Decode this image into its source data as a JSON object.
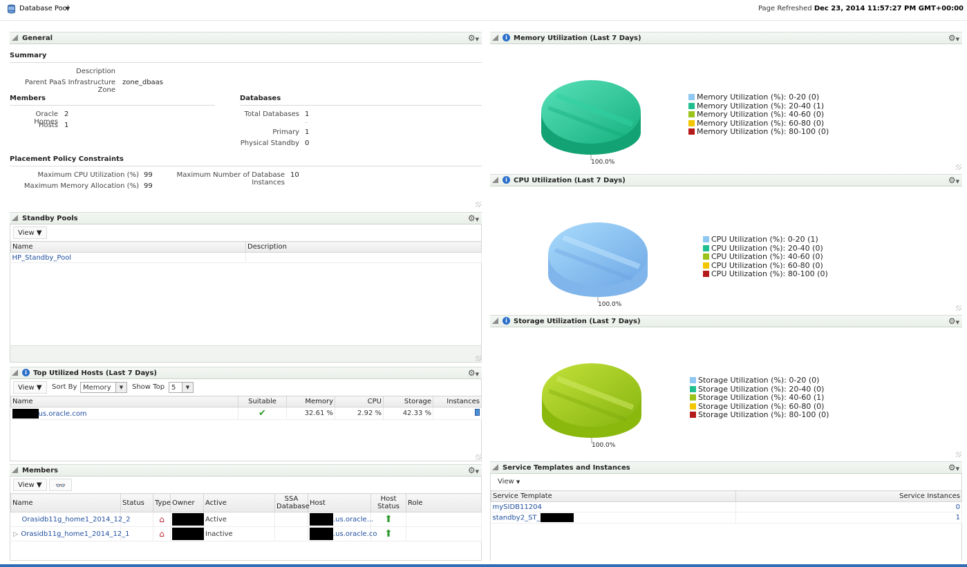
{
  "header": {
    "app_title": "Database Pool",
    "refresh_label": "Page Refreshed",
    "refresh_time": "Dec 23, 2014 11:57:27 PM GMT+00:00"
  },
  "general": {
    "title": "General",
    "summary_title": "Summary",
    "description_label": "Description",
    "zone_label": "Parent PaaS Infrastructure Zone",
    "zone_value": "zone_dbaas",
    "members_title": "Members",
    "oracle_homes_label": "Oracle Homes",
    "oracle_homes_value": "2",
    "hosts_label": "Hosts",
    "hosts_value": "1",
    "databases_title": "Databases",
    "total_db_label": "Total Databases",
    "total_db_value": "1",
    "primary_label": "Primary",
    "primary_value": "1",
    "physical_standby_label": "Physical Standby",
    "physical_standby_value": "0",
    "placement_title": "Placement Policy Constraints",
    "max_cpu_label": "Maximum CPU Utilization (%)",
    "max_cpu_value": "99",
    "max_instances_label": "Maximum Number of Database Instances",
    "max_instances_value": "10",
    "max_mem_label": "Maximum Memory Allocation (%)",
    "max_mem_value": "99"
  },
  "standby_pools": {
    "title": "Standby Pools",
    "view_label": "View",
    "columns": [
      "Name",
      "Description"
    ],
    "rows": [
      {
        "name": "HP_Standby_Pool",
        "description": ""
      }
    ]
  },
  "top_hosts": {
    "title": "Top Utilized Hosts (Last 7 Days)",
    "view_label": "View",
    "sort_by_label": "Sort By",
    "sort_by_value": "Memory",
    "show_top_label": "Show Top",
    "show_top_value": "5",
    "columns": [
      "Name",
      "Suitable",
      "Memory",
      "CPU",
      "Storage",
      "Instances"
    ],
    "rows": [
      {
        "name": "us.oracle.com",
        "memory": "32.61 %",
        "cpu": "2.92 %",
        "storage": "42.33 %"
      }
    ]
  },
  "members": {
    "title": "Members",
    "view_label": "View",
    "columns": [
      "Name",
      "Status",
      "Type",
      "Owner",
      "Active",
      "SSA Database",
      "Host",
      "Host Status",
      "Role"
    ],
    "rows": [
      {
        "name": "Orasidb11g_home1_2014_12_2",
        "active": "Active",
        "host": ".us.oracle..."
      },
      {
        "name": "Orasidb11g_home1_2014_12_1",
        "active": "Inactive",
        "host": ".us.oracle.co"
      }
    ]
  },
  "memory_chart": {
    "title": "Memory Utilization (Last 7 Days)",
    "pct_label": "100.0%",
    "legend": [
      "Memory Utilization (%): 0-20 (0)",
      "Memory Utilization (%): 20-40 (1)",
      "Memory Utilization (%): 40-60 (0)",
      "Memory Utilization (%): 60-80 (0)",
      "Memory Utilization (%): 80-100 (0)"
    ]
  },
  "cpu_chart": {
    "title": "CPU Utilization (Last 7 Days)",
    "pct_label": "100.0%",
    "legend": [
      "CPU Utilization (%): 0-20 (1)",
      "CPU Utilization (%): 20-40 (0)",
      "CPU Utilization (%): 40-60 (0)",
      "CPU Utilization (%): 60-80 (0)",
      "CPU Utilization (%): 80-100 (0)"
    ]
  },
  "storage_chart": {
    "title": "Storage Utilization (Last 7 Days)",
    "pct_label": "100.0%",
    "legend": [
      "Storage Utilization (%): 0-20 (0)",
      "Storage Utilization (%): 20-40 (0)",
      "Storage Utilization (%): 40-60 (1)",
      "Storage Utilization (%): 60-80 (0)",
      "Storage Utilization (%): 80-100 (0)"
    ]
  },
  "legend_colors": [
    "#8ec8f2",
    "#1fbf8f",
    "#9bc31a",
    "#f2c600",
    "#b51a1a"
  ],
  "service_templates": {
    "title": "Service Templates and Instances",
    "view_label": "View",
    "columns": [
      "Service Template",
      "Service Instances"
    ],
    "rows": [
      {
        "template": "mySIDB11204",
        "instances": "0"
      },
      {
        "template": "standby2_ST_",
        "instances": "1"
      }
    ]
  }
}
